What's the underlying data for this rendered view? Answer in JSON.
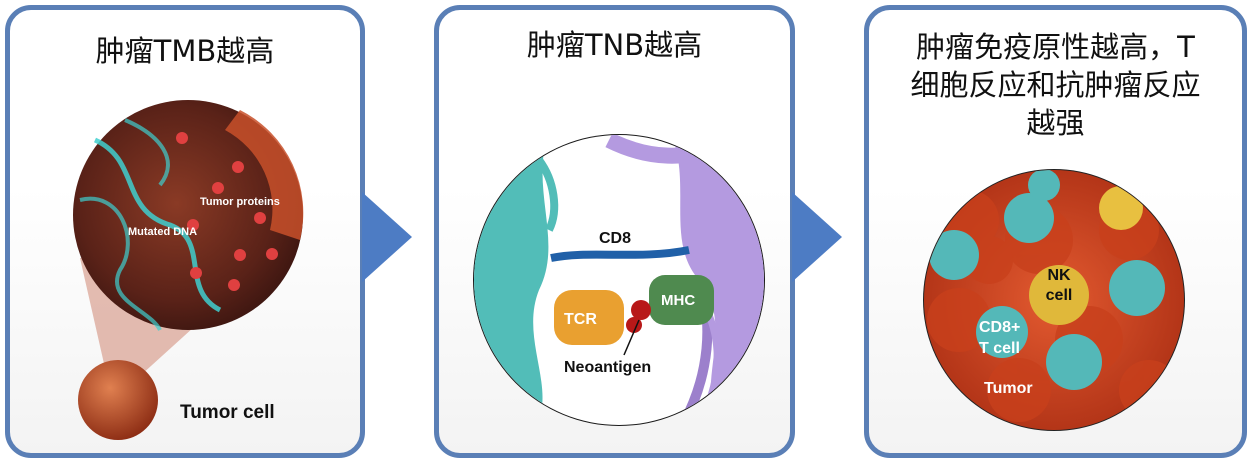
{
  "panels": [
    {
      "title": "肿瘤TMB越高",
      "labels": {
        "tumor_proteins": "Tumor proteins",
        "mutated_dna": "Mutated DNA",
        "tumor_cell": "Tumor cell"
      }
    },
    {
      "title": "肿瘤TNB越高",
      "labels": {
        "cd8": "CD8",
        "tcr": "TCR",
        "mhc": "MHC",
        "neoantigen": "Neoantigen"
      }
    },
    {
      "title_lines": [
        "肿瘤免疫原性越高，T",
        "细胞反应和抗肿瘤反应",
        "越强"
      ],
      "labels": {
        "nk_line1": "NK",
        "nk_line2": "cell",
        "cd8_line1": "CD8+",
        "cd8_line2": "T cell",
        "tumor": "Tumor"
      }
    }
  ],
  "colors": {
    "border": "#5a7fb6",
    "arrow": "#4d7cc4",
    "tumor": "#c9401c",
    "teal": "#4bb3ad",
    "purple": "#a98ad8"
  }
}
